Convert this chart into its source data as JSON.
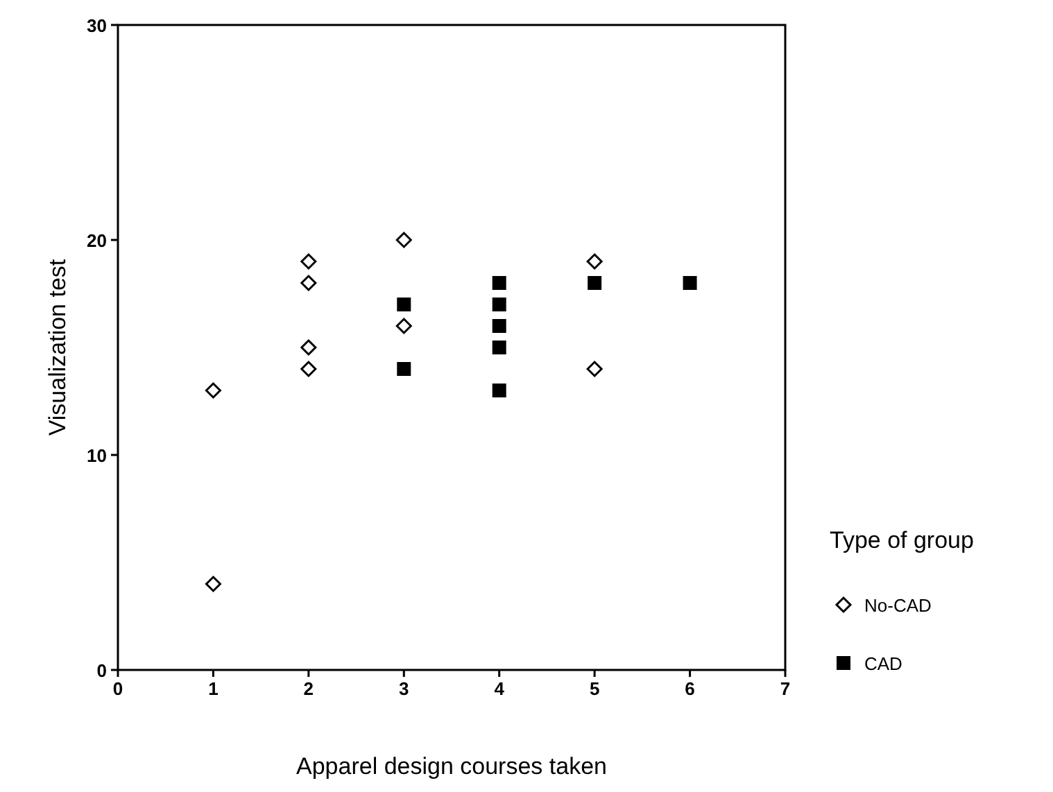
{
  "chart_data": {
    "type": "scatter",
    "xlabel": "Apparel design courses taken",
    "ylabel": "Visualization test",
    "legend_title": "Type of group",
    "legend": "right",
    "grid": false,
    "xlim": [
      0,
      7
    ],
    "xticks": [
      0,
      1,
      2,
      3,
      4,
      5,
      6,
      7
    ],
    "ylim": [
      0,
      30
    ],
    "yticks": [
      0,
      10,
      20,
      30
    ],
    "series": [
      {
        "name": "No-CAD",
        "color": "#000000",
        "marker": "diamond",
        "x": [
          1,
          1,
          2,
          2,
          2,
          2,
          3,
          3,
          5,
          5
        ],
        "values": [
          13,
          4,
          19,
          18,
          15,
          14,
          20,
          16,
          19,
          14
        ]
      },
      {
        "name": "CAD",
        "color": "#000000",
        "marker": "square",
        "x": [
          3,
          3,
          4,
          4,
          4,
          4,
          4,
          5,
          6
        ],
        "values": [
          17,
          14,
          18,
          17,
          16,
          15,
          13,
          18,
          18
        ]
      }
    ]
  }
}
